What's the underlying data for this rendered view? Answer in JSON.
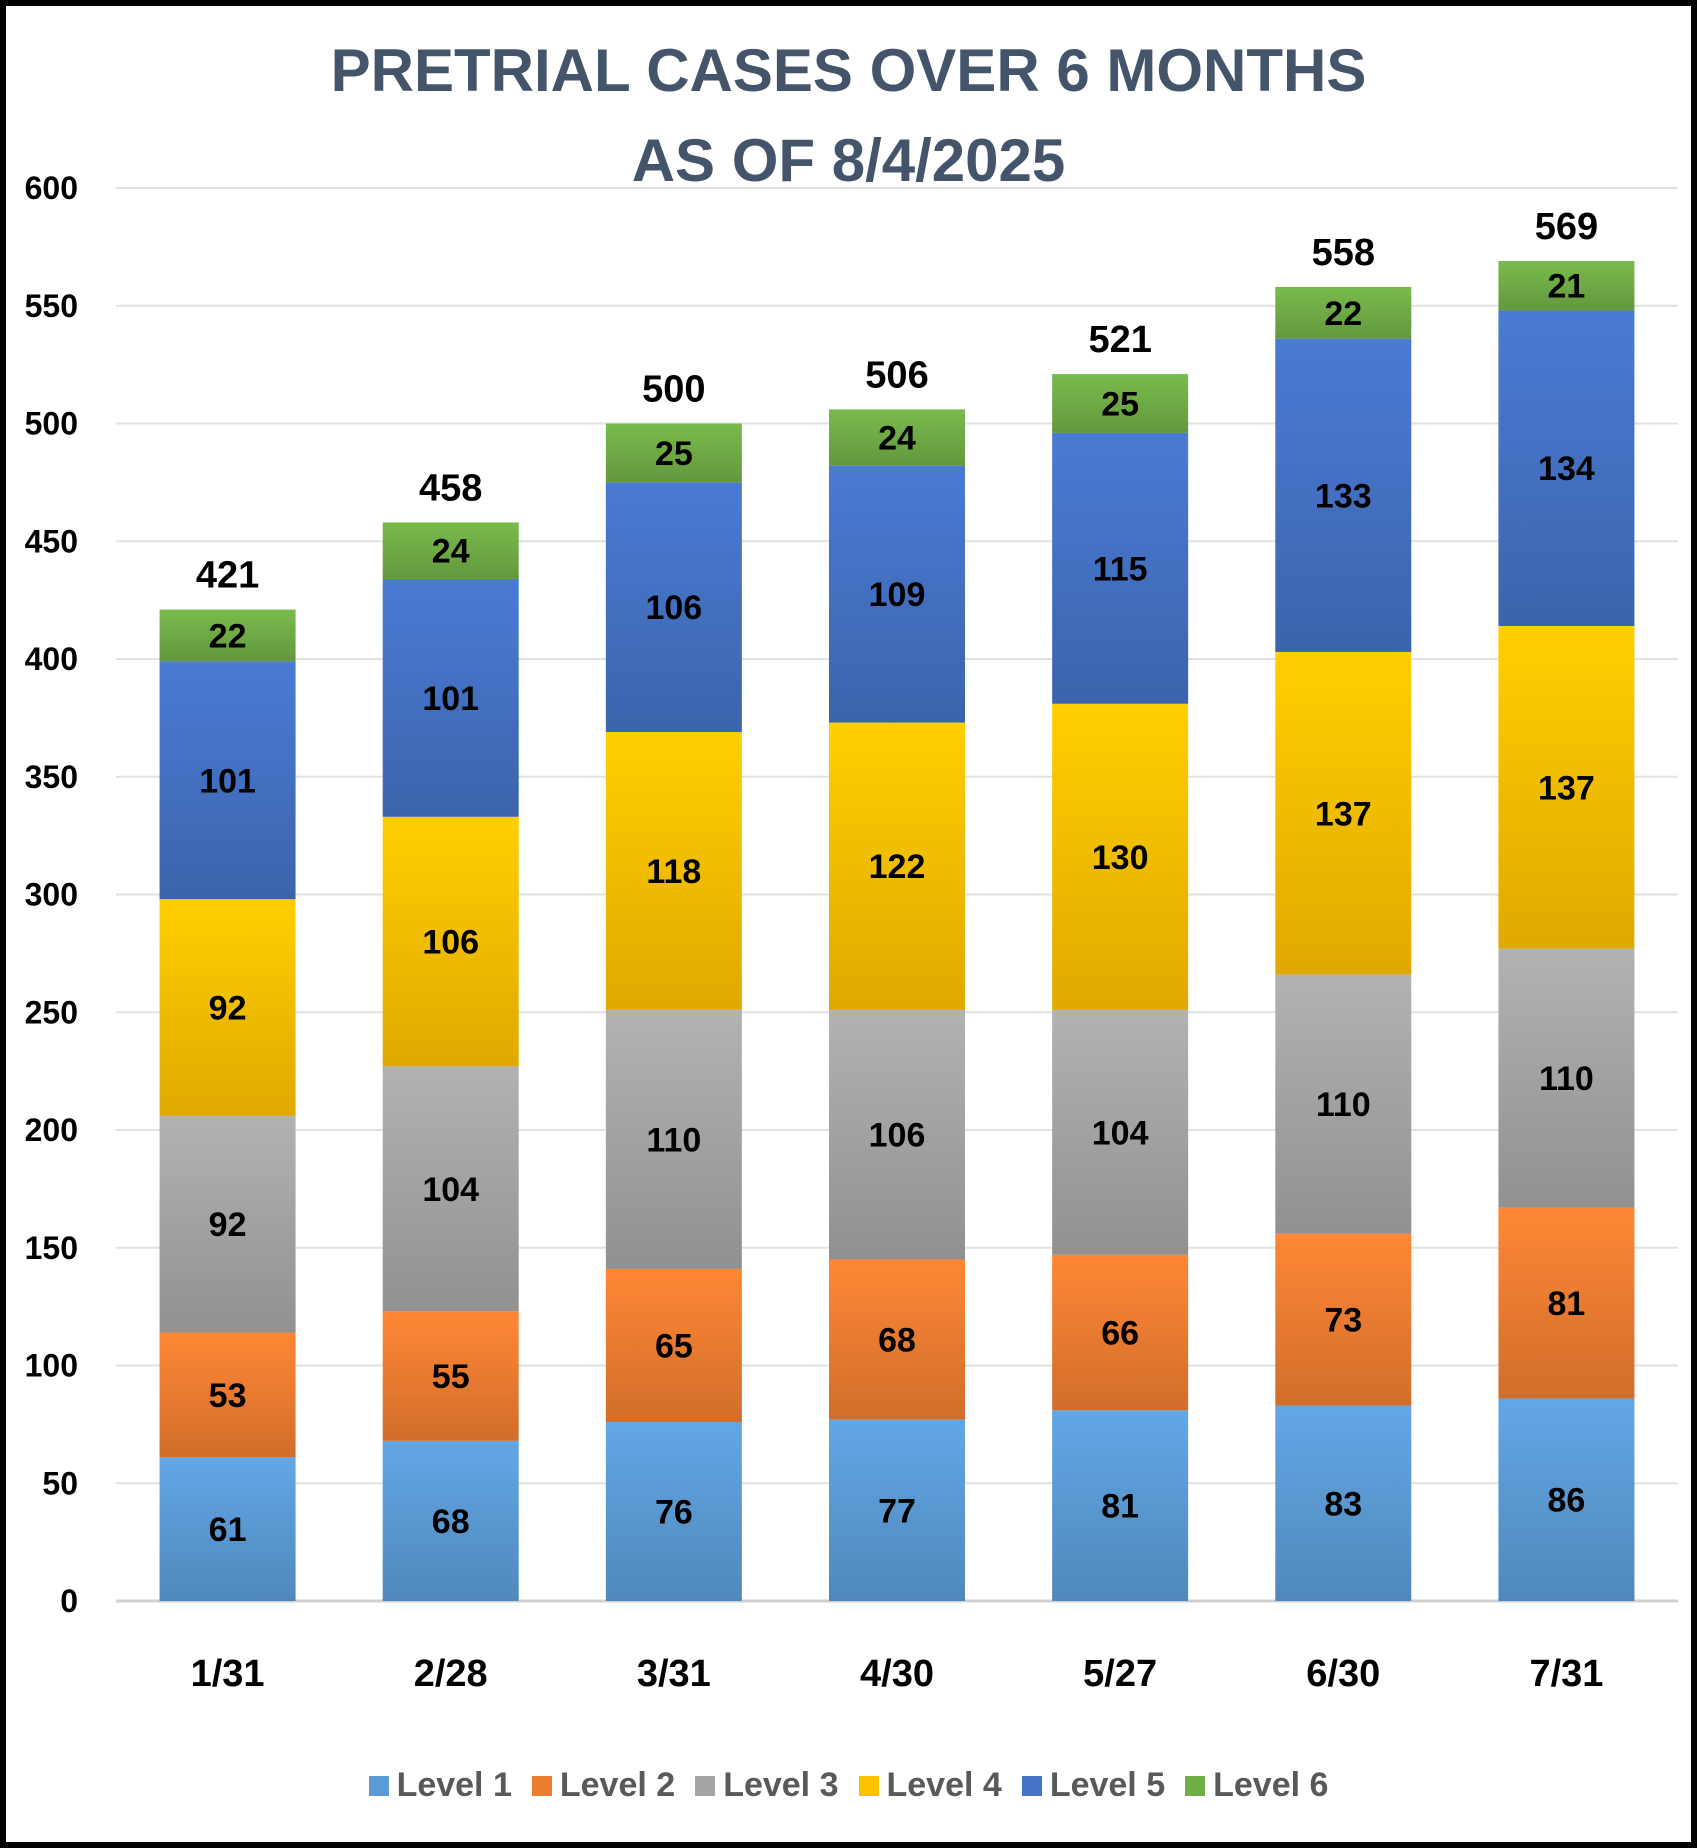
{
  "chart_data": {
    "type": "bar",
    "stacked": true,
    "title": [
      "PRETRIAL CASES OVER 6 MONTHS",
      "AS OF 8/4/2025"
    ],
    "xlabel": "",
    "ylabel": "",
    "ylim": [
      0,
      600
    ],
    "yticks": [
      0,
      50,
      100,
      150,
      200,
      250,
      300,
      350,
      400,
      450,
      500,
      550,
      600
    ],
    "grid": true,
    "legend_position": "bottom",
    "categories": [
      "1/31",
      "2/28",
      "3/31",
      "4/30",
      "5/27",
      "6/30",
      "7/31"
    ],
    "series": [
      {
        "name": "Level 1",
        "color": "#5b9bd5",
        "values": [
          61,
          68,
          76,
          77,
          81,
          83,
          86
        ]
      },
      {
        "name": "Level 2",
        "color": "#ed7d31",
        "values": [
          53,
          55,
          65,
          68,
          66,
          73,
          81
        ]
      },
      {
        "name": "Level 3",
        "color": "#a5a5a5",
        "values": [
          92,
          104,
          110,
          106,
          104,
          110,
          110
        ]
      },
      {
        "name": "Level 4",
        "color": "#ffc000",
        "values": [
          92,
          106,
          118,
          122,
          130,
          137,
          137
        ]
      },
      {
        "name": "Level 5",
        "color": "#4472c4",
        "values": [
          101,
          101,
          106,
          109,
          115,
          133,
          134
        ]
      },
      {
        "name": "Level 6",
        "color": "#70ad47",
        "values": [
          22,
          24,
          25,
          24,
          25,
          22,
          21
        ]
      }
    ],
    "totals": [
      421,
      458,
      500,
      506,
      521,
      558,
      569
    ]
  }
}
